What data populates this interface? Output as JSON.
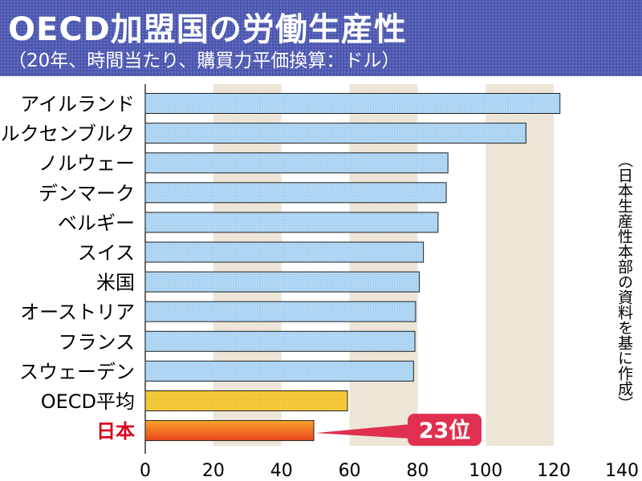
{
  "header": {
    "title": "OECD加盟国の労働生産性",
    "subtitle": "（20年、時間当たり、購買力平価換算：ドル）"
  },
  "source_note": "（日本生産性本部の資料を基に作成）",
  "callout": "23位",
  "colors": {
    "header_bg": "#4a56b0",
    "bar_default": "#a9d2f2",
    "bar_oecd": "#f2c430",
    "bar_japan": "#e8451c",
    "japan_label": "#d8001a",
    "callout_bg": "#e0304f",
    "band": "#ece5d8"
  },
  "chart_data": {
    "type": "bar",
    "orientation": "horizontal",
    "categories": [
      "アイルランド",
      "ルクセンブルク",
      "ノルウェー",
      "デンマーク",
      "ベルギー",
      "スイス",
      "米国",
      "オーストリア",
      "フランス",
      "スウェーデン",
      "OECD平均",
      "日本"
    ],
    "values": [
      121.8,
      111.8,
      88.9,
      88.4,
      86.0,
      81.7,
      80.5,
      79.4,
      79.2,
      78.8,
      59.4,
      49.5
    ],
    "xlim": [
      0,
      140
    ],
    "xticks": [
      0,
      20,
      40,
      60,
      80,
      100,
      120,
      140
    ],
    "highlight": {
      "OECD平均": "oecd",
      "日本": "japan"
    },
    "title": "",
    "xlabel": "",
    "ylabel": ""
  }
}
